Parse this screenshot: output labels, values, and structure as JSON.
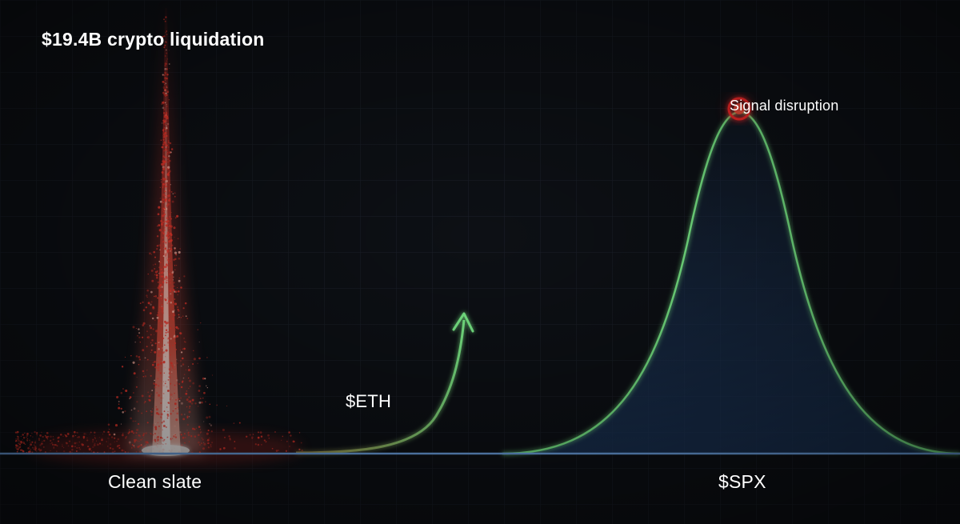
{
  "title": "$19.4B crypto liquidation",
  "labels": {
    "eth": "$ETH",
    "clean_slate": "Clean slate",
    "spx": "$SPX",
    "signal": "Signal disruption"
  },
  "colors": {
    "background": "#0d1015",
    "grid": "#1c212b",
    "liquidation": "#ff3b2f",
    "curve": "#7cf08a",
    "baseline": "#6fa6e8",
    "area_fill": "#1d3a63",
    "signal_marker": "#ff2a2a"
  }
}
